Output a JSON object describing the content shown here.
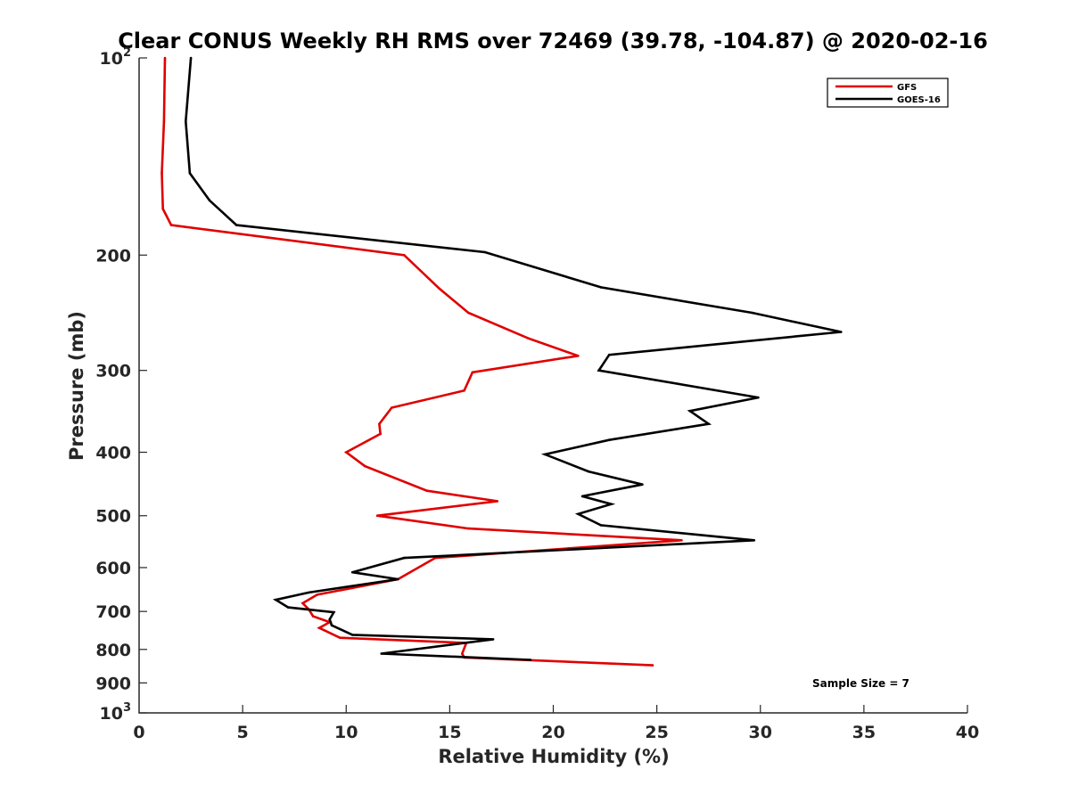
{
  "chart_data": {
    "type": "line",
    "title": "Clear CONUS Weekly RH RMS over 72469 (39.78, -104.87) @ 2020-02-16",
    "xlabel": "Relative Humidity (%)",
    "ylabel": "Pressure (mb)",
    "xlim": [
      0,
      40
    ],
    "ylim": [
      100,
      1000
    ],
    "y_scale": "log",
    "y_reversed": true,
    "grid": false,
    "x_ticks": [
      "0",
      "5",
      "10",
      "15",
      "20",
      "25",
      "30",
      "35",
      "40"
    ],
    "y_ticks": [
      {
        "value": 100,
        "base": "10",
        "exp": "2"
      },
      {
        "value": 200,
        "label": "200"
      },
      {
        "value": 300,
        "label": "300"
      },
      {
        "value": 400,
        "label": "400"
      },
      {
        "value": 500,
        "label": "500"
      },
      {
        "value": 600,
        "label": "600"
      },
      {
        "value": 700,
        "label": "700"
      },
      {
        "value": 800,
        "label": "800"
      },
      {
        "value": 900,
        "label": "900"
      },
      {
        "value": 1000,
        "base": "10",
        "exp": "3"
      }
    ],
    "legend_position": "top-right",
    "annotation": "Sample Size = 7",
    "series": [
      {
        "name": "GFS",
        "color": "#e00000",
        "points": [
          [
            1.25,
            100
          ],
          [
            1.2,
            125
          ],
          [
            1.1,
            150
          ],
          [
            1.15,
            170
          ],
          [
            1.55,
            180
          ],
          [
            12.8,
            200
          ],
          [
            14.5,
            225
          ],
          [
            15.9,
            245
          ],
          [
            18.8,
            268
          ],
          [
            21.2,
            285
          ],
          [
            16.1,
            302
          ],
          [
            15.7,
            322
          ],
          [
            12.2,
            342
          ],
          [
            11.6,
            362
          ],
          [
            11.65,
            375
          ],
          [
            10.0,
            400
          ],
          [
            10.9,
            420
          ],
          [
            13.9,
            458
          ],
          [
            17.3,
            475
          ],
          [
            11.5,
            500
          ],
          [
            15.9,
            523
          ],
          [
            26.2,
            545
          ],
          [
            14.3,
            580
          ],
          [
            12.5,
            625
          ],
          [
            8.6,
            660
          ],
          [
            7.9,
            680
          ],
          [
            8.2,
            695
          ],
          [
            8.4,
            712
          ],
          [
            9.2,
            727
          ],
          [
            8.7,
            742
          ],
          [
            9.7,
            768
          ],
          [
            15.8,
            782
          ],
          [
            15.6,
            812
          ],
          [
            15.7,
            823
          ],
          [
            24.8,
            846
          ]
        ]
      },
      {
        "name": "GOES-16",
        "color": "#000000",
        "points": [
          [
            2.5,
            100
          ],
          [
            2.25,
            125
          ],
          [
            2.45,
            150
          ],
          [
            3.4,
            165
          ],
          [
            4.7,
            180
          ],
          [
            16.7,
            198
          ],
          [
            22.3,
            224
          ],
          [
            29.6,
            245
          ],
          [
            33.9,
            262
          ],
          [
            22.7,
            284
          ],
          [
            22.2,
            300
          ],
          [
            29.9,
            330
          ],
          [
            26.6,
            346
          ],
          [
            27.5,
            362
          ],
          [
            22.7,
            383
          ],
          [
            19.6,
            403
          ],
          [
            21.7,
            428
          ],
          [
            24.3,
            448
          ],
          [
            21.4,
            467
          ],
          [
            22.8,
            480
          ],
          [
            21.2,
            497
          ],
          [
            22.3,
            517
          ],
          [
            29.7,
            545
          ],
          [
            12.8,
            580
          ],
          [
            10.3,
            610
          ],
          [
            12.5,
            625
          ],
          [
            8.2,
            655
          ],
          [
            6.6,
            672
          ],
          [
            7.2,
            690
          ],
          [
            9.4,
            702
          ],
          [
            9.2,
            720
          ],
          [
            9.3,
            735
          ],
          [
            10.3,
            760
          ],
          [
            17.1,
            772
          ],
          [
            11.7,
            812
          ],
          [
            18.9,
            830
          ]
        ]
      }
    ]
  }
}
